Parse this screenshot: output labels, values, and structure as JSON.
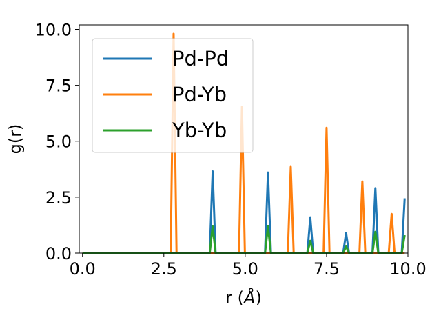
{
  "chart_data": {
    "type": "line",
    "xlabel": "r (",
    "xlabel_symbol": "Å",
    "xlabel_suffix": ")",
    "ylabel": "g(r)",
    "xlim": [
      -0.1,
      10.0
    ],
    "ylim": [
      0,
      10.2
    ],
    "xticks": [
      0.0,
      2.5,
      5.0,
      7.5,
      10.0
    ],
    "xtick_labels": [
      "0.0",
      "2.5",
      "5.0",
      "7.5",
      "10.0"
    ],
    "yticks": [
      0.0,
      2.5,
      5.0,
      7.5,
      10.0
    ],
    "ytick_labels": [
      "0.0",
      "2.5",
      "5.0",
      "7.5",
      "10.0"
    ],
    "grid": false,
    "legend_position": "top-left",
    "peak_half_width": 0.09,
    "x_range": [
      0.0,
      9.9
    ],
    "series": [
      {
        "name": "Pd-Pd",
        "color": "#1f77b4",
        "peaks": [
          {
            "x": 4.0,
            "y": 3.65
          },
          {
            "x": 5.7,
            "y": 3.6
          },
          {
            "x": 7.0,
            "y": 1.6
          },
          {
            "x": 8.1,
            "y": 0.9
          },
          {
            "x": 9.0,
            "y": 2.9
          },
          {
            "x": 9.9,
            "y": 2.45
          }
        ]
      },
      {
        "name": "Pd-Yb",
        "color": "#ff7f0e",
        "peaks": [
          {
            "x": 2.8,
            "y": 9.8
          },
          {
            "x": 4.9,
            "y": 6.55
          },
          {
            "x": 6.4,
            "y": 3.85
          },
          {
            "x": 7.5,
            "y": 5.6
          },
          {
            "x": 8.6,
            "y": 3.2
          },
          {
            "x": 9.5,
            "y": 1.75
          }
        ]
      },
      {
        "name": "Yb-Yb",
        "color": "#2ca02c",
        "peaks": [
          {
            "x": 4.0,
            "y": 1.2
          },
          {
            "x": 5.7,
            "y": 1.2
          },
          {
            "x": 7.0,
            "y": 0.55
          },
          {
            "x": 8.1,
            "y": 0.3
          },
          {
            "x": 9.0,
            "y": 0.95
          },
          {
            "x": 9.9,
            "y": 0.8
          }
        ]
      }
    ]
  }
}
